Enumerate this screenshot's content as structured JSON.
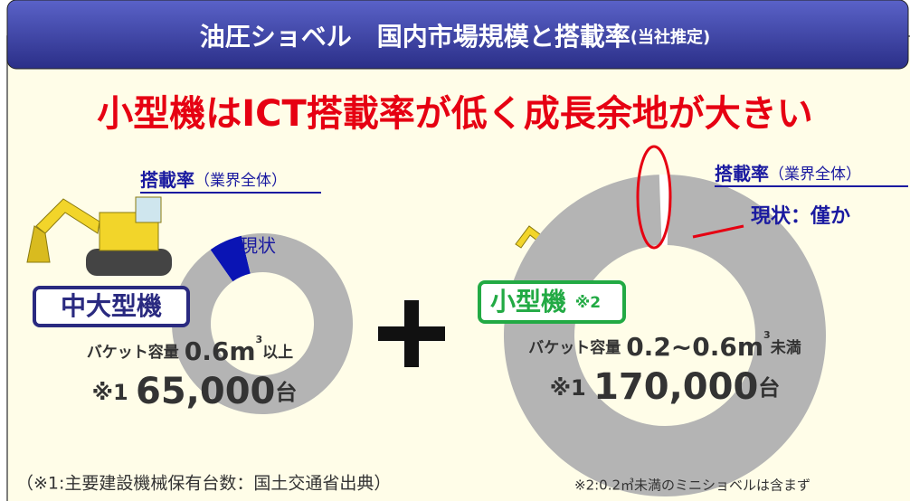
{
  "header": {
    "title": "油圧ショベル　国内市場規模と搭載率",
    "note": "(当社推定)"
  },
  "headline": "小型機はICT搭載率が低く成長余地が大きい",
  "chart_data": [
    {
      "type": "pie",
      "title": "搭載率",
      "subtitle": "（業界全体）",
      "categories": [
        "現状",
        null
      ],
      "values": [
        6,
        94
      ],
      "colors": [
        "#0a14b4",
        "#b4b4b4"
      ],
      "segment": "中大型機",
      "capacity": {
        "label": "バケット容量",
        "size": "0.6m",
        "unit": "3",
        "range": "以上"
      },
      "count": {
        "note": "※1",
        "value": "65,000",
        "unit": "台"
      }
    },
    {
      "type": "pie",
      "title": "搭載率",
      "subtitle": "（業界全体）",
      "categories": [
        "現状：僅か",
        null
      ],
      "values": [
        1,
        99
      ],
      "colors": [
        "#ffffff",
        "#b4b4b4"
      ],
      "segment": "小型機",
      "segment_note": "※2",
      "capacity": {
        "label": "バケット容量",
        "size": "0.2~0.6m",
        "unit": "3",
        "range": "未満"
      },
      "count": {
        "note": "※1",
        "value": "170,000",
        "unit": "台"
      }
    }
  ],
  "notes": [
    "（※1:主要建設機械保有台数：国土交通省出典）",
    "※2:0.2㎥未満のミニショベルは含まず"
  ]
}
